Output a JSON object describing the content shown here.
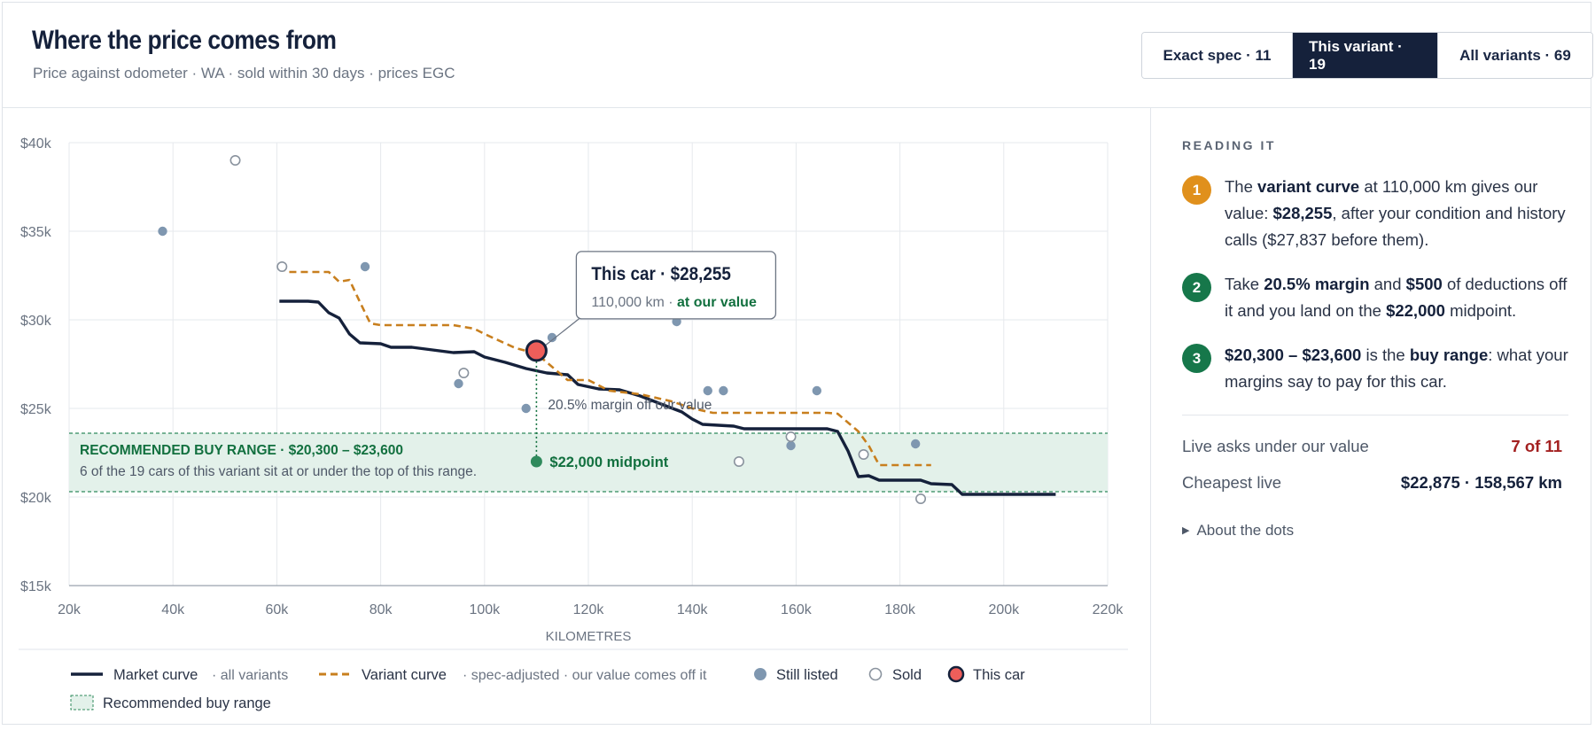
{
  "header": {
    "title": "Where the price comes from",
    "subtitle": "Price against odometer · WA · sold within 30 days · prices EGC"
  },
  "segments": [
    {
      "label": "Exact spec · 11",
      "active": false
    },
    {
      "label": "This variant · 19",
      "active": true
    },
    {
      "label": "All variants · 69",
      "active": false
    }
  ],
  "colors": {
    "market": "#15213b",
    "variant": "#c87f1e",
    "listed": "#7f97b0",
    "sold_stroke": "#8a939e",
    "this_car": "#ee5e5a",
    "band_fill": "#e3f1ea",
    "band_line": "#2f8a5c",
    "green_text": "#12703f",
    "step1": "#e0901c",
    "step2": "#16774a",
    "step3": "#16774a"
  },
  "chart_data": {
    "type": "scatter",
    "xlabel": "KILOMETRES",
    "ylabel": "",
    "xlim": [
      20000,
      220000
    ],
    "ylim": [
      15000,
      40000
    ],
    "x_ticks": [
      20000,
      40000,
      60000,
      80000,
      100000,
      120000,
      140000,
      160000,
      180000,
      200000,
      220000
    ],
    "x_tick_labels": [
      "20k",
      "40k",
      "60k",
      "80k",
      "100k",
      "120k",
      "140k",
      "160k",
      "180k",
      "200k",
      "220k"
    ],
    "y_ticks": [
      15000,
      20000,
      25000,
      30000,
      35000,
      40000
    ],
    "y_tick_labels": [
      "$15k",
      "$20k",
      "$25k",
      "$30k",
      "$35k",
      "$40k"
    ],
    "grid": true,
    "legend_position": "bottom",
    "series": [
      {
        "name": "Market curve",
        "kind": "line",
        "points": [
          [
            60500,
            31050
          ],
          [
            66000,
            31050
          ],
          [
            68000,
            31000
          ],
          [
            70000,
            30400
          ],
          [
            72000,
            30100
          ],
          [
            74000,
            29200
          ],
          [
            76000,
            28700
          ],
          [
            80000,
            28650
          ],
          [
            82000,
            28450
          ],
          [
            86000,
            28450
          ],
          [
            90000,
            28300
          ],
          [
            94000,
            28150
          ],
          [
            98000,
            28200
          ],
          [
            100000,
            27900
          ],
          [
            104000,
            27600
          ],
          [
            108000,
            27250
          ],
          [
            112000,
            27000
          ],
          [
            116000,
            26900
          ],
          [
            118000,
            26350
          ],
          [
            122000,
            26100
          ],
          [
            126000,
            26050
          ],
          [
            130000,
            25700
          ],
          [
            134000,
            25250
          ],
          [
            138000,
            24800
          ],
          [
            140000,
            24400
          ],
          [
            142000,
            24100
          ],
          [
            148000,
            24000
          ],
          [
            150000,
            23850
          ],
          [
            166000,
            23850
          ],
          [
            168000,
            23700
          ],
          [
            170000,
            22600
          ],
          [
            172000,
            21150
          ],
          [
            174000,
            21200
          ],
          [
            176000,
            20950
          ],
          [
            184000,
            20950
          ],
          [
            186000,
            20750
          ],
          [
            190000,
            20700
          ],
          [
            192000,
            20150
          ],
          [
            210000,
            20150
          ]
        ]
      },
      {
        "name": "Variant curve",
        "kind": "dashed-line",
        "points": [
          [
            60500,
            33000
          ],
          [
            62000,
            32700
          ],
          [
            70000,
            32700
          ],
          [
            72000,
            32150
          ],
          [
            74000,
            32250
          ],
          [
            76000,
            31000
          ],
          [
            78000,
            29800
          ],
          [
            80000,
            29700
          ],
          [
            94000,
            29700
          ],
          [
            98000,
            29500
          ],
          [
            100000,
            29200
          ],
          [
            106000,
            28400
          ],
          [
            110000,
            28100
          ],
          [
            114000,
            27100
          ],
          [
            116000,
            26600
          ],
          [
            120000,
            26600
          ],
          [
            124000,
            26000
          ],
          [
            130000,
            25800
          ],
          [
            136000,
            25400
          ],
          [
            140000,
            25000
          ],
          [
            144000,
            24750
          ],
          [
            166000,
            24750
          ],
          [
            168000,
            24700
          ],
          [
            170000,
            24200
          ],
          [
            172000,
            23700
          ],
          [
            174000,
            22900
          ],
          [
            176000,
            21800
          ],
          [
            186000,
            21800
          ]
        ]
      },
      {
        "name": "Still listed",
        "kind": "points",
        "points": [
          [
            38000,
            35000
          ],
          [
            77000,
            33000
          ],
          [
            95000,
            26400
          ],
          [
            108000,
            25000
          ],
          [
            113000,
            29000
          ],
          [
            137000,
            29900
          ],
          [
            143000,
            26000
          ],
          [
            146000,
            26000
          ],
          [
            159000,
            22900
          ],
          [
            164000,
            26000
          ],
          [
            183000,
            23000
          ]
        ]
      },
      {
        "name": "Sold",
        "kind": "hollow-points",
        "points": [
          [
            52000,
            39000
          ],
          [
            61000,
            33000
          ],
          [
            96000,
            27000
          ],
          [
            149000,
            22000
          ],
          [
            159000,
            23400
          ],
          [
            173000,
            22400
          ],
          [
            184000,
            19900
          ]
        ]
      },
      {
        "name": "This car",
        "kind": "highlight",
        "points": [
          [
            110000,
            28255
          ]
        ]
      }
    ],
    "buy_range": {
      "low": 20300,
      "high": 23600,
      "label": "RECOMMENDED BUY RANGE · $20,300 – $23,600",
      "note": "6 of the 19 cars of this variant sit at or under the top of this range."
    },
    "midpoint": {
      "x": 110000,
      "y": 22000,
      "label": "$22,000 midpoint"
    },
    "margin_note": "20.5% margin off our value",
    "callout": {
      "title": "This car · $28,255",
      "sub_km": "110,000 km · ",
      "sub_value": "at our value"
    }
  },
  "legend": [
    {
      "key": "market",
      "label": "Market curve",
      "note": "· all variants"
    },
    {
      "key": "variant",
      "label": "Variant curve",
      "note": "· spec-adjusted · our value comes off it"
    },
    {
      "key": "listed",
      "label": "Still listed",
      "note": ""
    },
    {
      "key": "sold",
      "label": "Sold",
      "note": ""
    },
    {
      "key": "thiscar",
      "label": "This car",
      "note": ""
    },
    {
      "key": "band",
      "label": "Recommended buy range",
      "note": ""
    }
  ],
  "side": {
    "heading": "READING IT",
    "steps": [
      {
        "num": "1",
        "html": "The <b>variant curve</b> at 110,000 km gives our value: <b>$28,255</b>, after your condition and history calls ($27,837 before them)."
      },
      {
        "num": "2",
        "html": "Take <b>20.5% margin</b> and <b>$500</b> of deductions off it and you land on the <b>$22,000</b> midpoint."
      },
      {
        "num": "3",
        "html": "<b>$20,300 – $23,600</b> is the <b>buy range</b>: what your margins say to pay for this car."
      }
    ],
    "stats": [
      {
        "label": "Live asks under our value",
        "value": "7 of 11",
        "emphasis": "red"
      },
      {
        "label": "Cheapest live",
        "value": "$22,875 · 158,567 km",
        "emphasis": "dark"
      }
    ],
    "about": "About the dots"
  }
}
